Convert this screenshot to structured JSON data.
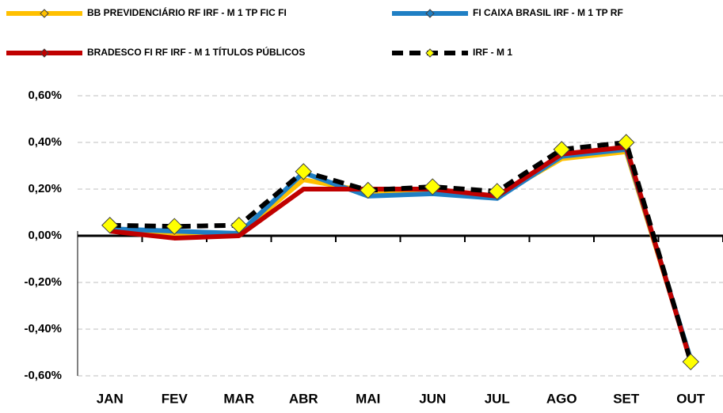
{
  "chart_data": {
    "type": "line",
    "categories": [
      "JAN",
      "FEV",
      "MAR",
      "ABR",
      "MAI",
      "JUN",
      "JUL",
      "AGO",
      "SET",
      "OUT"
    ],
    "series": [
      {
        "name": "BB PREVIDENCIÁRIO RF IRF - M 1 TP FIC FI",
        "color": "#ffc000",
        "values": [
          0.03,
          0.0,
          0.01,
          0.24,
          0.19,
          0.19,
          0.17,
          0.33,
          0.36,
          -0.53
        ]
      },
      {
        "name": "FI CAIXA BRASIL IRF - M 1 TP RF",
        "color": "#1f7fc4",
        "values": [
          0.03,
          0.02,
          0.01,
          0.27,
          0.17,
          0.18,
          0.16,
          0.34,
          0.37,
          -0.53
        ]
      },
      {
        "name": "BRADESCO FI RF IRF - M 1 TÍTULOS PÚBLICOS",
        "color": "#c00000",
        "values": [
          0.02,
          -0.01,
          0.0,
          0.2,
          0.2,
          0.2,
          0.17,
          0.35,
          0.38,
          -0.54
        ]
      },
      {
        "name": "IRF - M 1",
        "color": "#000000",
        "marker_color": "#ffff00",
        "values": [
          0.045,
          0.04,
          0.045,
          0.275,
          0.195,
          0.21,
          0.19,
          0.37,
          0.4,
          -0.54
        ]
      }
    ],
    "ylim": [
      -0.6,
      0.6
    ],
    "yticks": [
      {
        "value": 0.6,
        "label": "0,60%"
      },
      {
        "value": 0.4,
        "label": "0,40%"
      },
      {
        "value": 0.2,
        "label": "0,20%"
      },
      {
        "value": 0.0,
        "label": "0,00%"
      },
      {
        "value": -0.2,
        "label": "-0,20%"
      },
      {
        "value": -0.4,
        "label": "-0,40%"
      },
      {
        "value": -0.6,
        "label": "-0,60%"
      }
    ],
    "grid": true
  }
}
